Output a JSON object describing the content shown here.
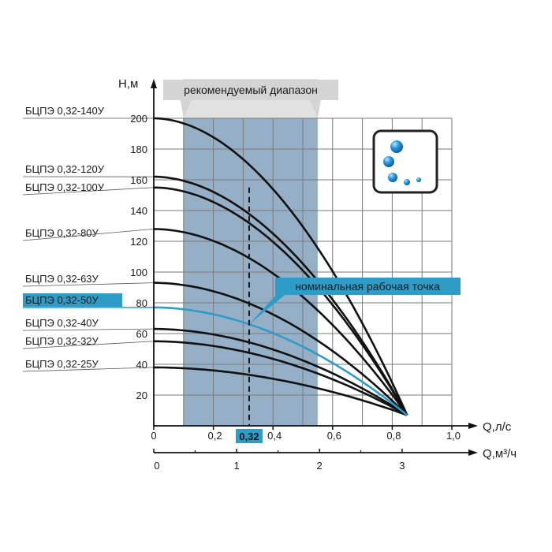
{
  "chart_data": {
    "type": "line",
    "y_axis_label": "Н,м",
    "x_axis_label": "Q,л/с",
    "x2_axis_label": "Q,м³/ч",
    "range_label": "рекомендуемый диапазон",
    "nominal_point_label": "номинальная рабочая точка",
    "nominal_flow_label": "0,32",
    "nominal_flow": 0.32,
    "recommended_range": [
      0.1,
      0.55
    ],
    "xlim": [
      0,
      1.0
    ],
    "ylim": [
      0,
      200
    ],
    "x_ticks": [
      {
        "value": 0,
        "label": "0"
      },
      {
        "value": 0.2,
        "label": "0,2"
      },
      {
        "value": 0.4,
        "label": "0,4"
      },
      {
        "value": 0.6,
        "label": "0,6"
      },
      {
        "value": 0.8,
        "label": "0,8"
      },
      {
        "value": 1.0,
        "label": "1,0"
      }
    ],
    "x2_ticks": [
      {
        "value": 0,
        "label": "0"
      },
      {
        "value": 0.278,
        "label": "1"
      },
      {
        "value": 0.556,
        "label": "2"
      },
      {
        "value": 0.833,
        "label": "3"
      }
    ],
    "y_ticks": [
      {
        "value": 20,
        "label": "20"
      },
      {
        "value": 40,
        "label": "40"
      },
      {
        "value": 60,
        "label": "60"
      },
      {
        "value": 80,
        "label": "80"
      },
      {
        "value": 100,
        "label": "100"
      },
      {
        "value": 120,
        "label": "120"
      },
      {
        "value": 140,
        "label": "140"
      },
      {
        "value": 160,
        "label": "160"
      },
      {
        "value": 180,
        "label": "180"
      },
      {
        "value": 200,
        "label": "200"
      }
    ],
    "grid": true,
    "convergence_point": {
      "x": 0.85,
      "y": 7
    },
    "series": [
      {
        "name": "БЦПЭ 0,32-140У",
        "shutoff_head": 200,
        "highlight": false
      },
      {
        "name": "БЦПЭ 0,32-120У",
        "shutoff_head": 162,
        "highlight": false
      },
      {
        "name": "БЦПЭ 0,32-100У",
        "shutoff_head": 155,
        "highlight": false
      },
      {
        "name": "БЦПЭ 0,32-80У",
        "shutoff_head": 128,
        "highlight": false
      },
      {
        "name": "БЦПЭ 0,32-63У",
        "shutoff_head": 93,
        "highlight": false
      },
      {
        "name": "БЦПЭ 0,32-50У",
        "shutoff_head": 77,
        "highlight": true
      },
      {
        "name": "БЦПЭ 0,32-40У",
        "shutoff_head": 63,
        "highlight": false
      },
      {
        "name": "БЦПЭ 0,32-32У",
        "shutoff_head": 55,
        "highlight": false
      },
      {
        "name": "БЦПЭ 0,32-25У",
        "shutoff_head": 38,
        "highlight": false
      }
    ],
    "colors": {
      "curve": "#111111",
      "highlight": "#2f9bc7",
      "range_fill": "#8aa6c1",
      "range_band": "#e1e1e1",
      "grid": "#7a7a7a",
      "icon_bubble": "#1f8fd0"
    }
  }
}
